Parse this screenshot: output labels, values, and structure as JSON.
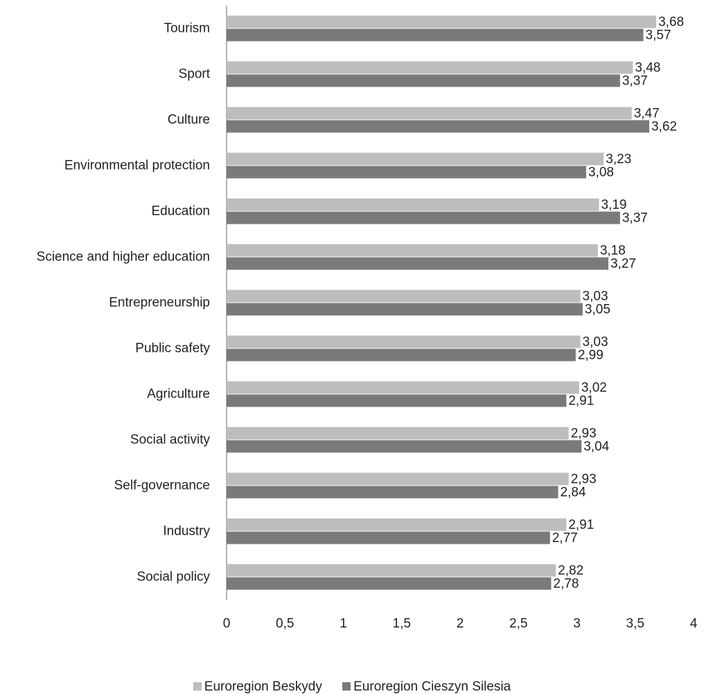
{
  "chart_data": {
    "type": "bar",
    "orientation": "horizontal",
    "categories": [
      "Tourism",
      "Sport",
      "Culture",
      "Environmental protection",
      "Education",
      "Science and higher education",
      "Entrepreneurship",
      "Public safety",
      "Agriculture",
      "Social activity",
      "Self-governance",
      "Industry",
      "Social policy"
    ],
    "series": [
      {
        "name": "Euroregion Beskydy",
        "color": "#bdbdbd",
        "values": [
          3.68,
          3.48,
          3.47,
          3.23,
          3.19,
          3.18,
          3.03,
          3.03,
          3.02,
          2.93,
          2.93,
          2.91,
          2.82
        ],
        "labels": [
          "3,68",
          "3,48",
          "3,47",
          "3,23",
          "3,19",
          "3,18",
          "3,03",
          "3,03",
          "3,02",
          "2,93",
          "2,93",
          "2,91",
          "2,82"
        ]
      },
      {
        "name": "Euroregion Cieszyn Silesia",
        "color": "#7a7a7c",
        "values": [
          3.57,
          3.37,
          3.62,
          3.08,
          3.37,
          3.27,
          3.05,
          2.99,
          2.91,
          3.04,
          2.84,
          2.77,
          2.78
        ],
        "labels": [
          "3,57",
          "3,37",
          "3,62",
          "3,08",
          "3,37",
          "3,27",
          "3,05",
          "2,99",
          "2,91",
          "3,04",
          "2,84",
          "2,77",
          "2,78"
        ]
      }
    ],
    "xlim": [
      0,
      4
    ],
    "xticks": [
      0,
      0.5,
      1,
      1.5,
      2,
      2.5,
      3,
      3.5,
      4
    ],
    "xtick_labels": [
      "0",
      "0,5",
      "1",
      "1,5",
      "2",
      "2,5",
      "3",
      "3,5",
      "4"
    ],
    "title": "",
    "xlabel": "",
    "ylabel": "",
    "grid": false,
    "legend_position": "bottom"
  }
}
